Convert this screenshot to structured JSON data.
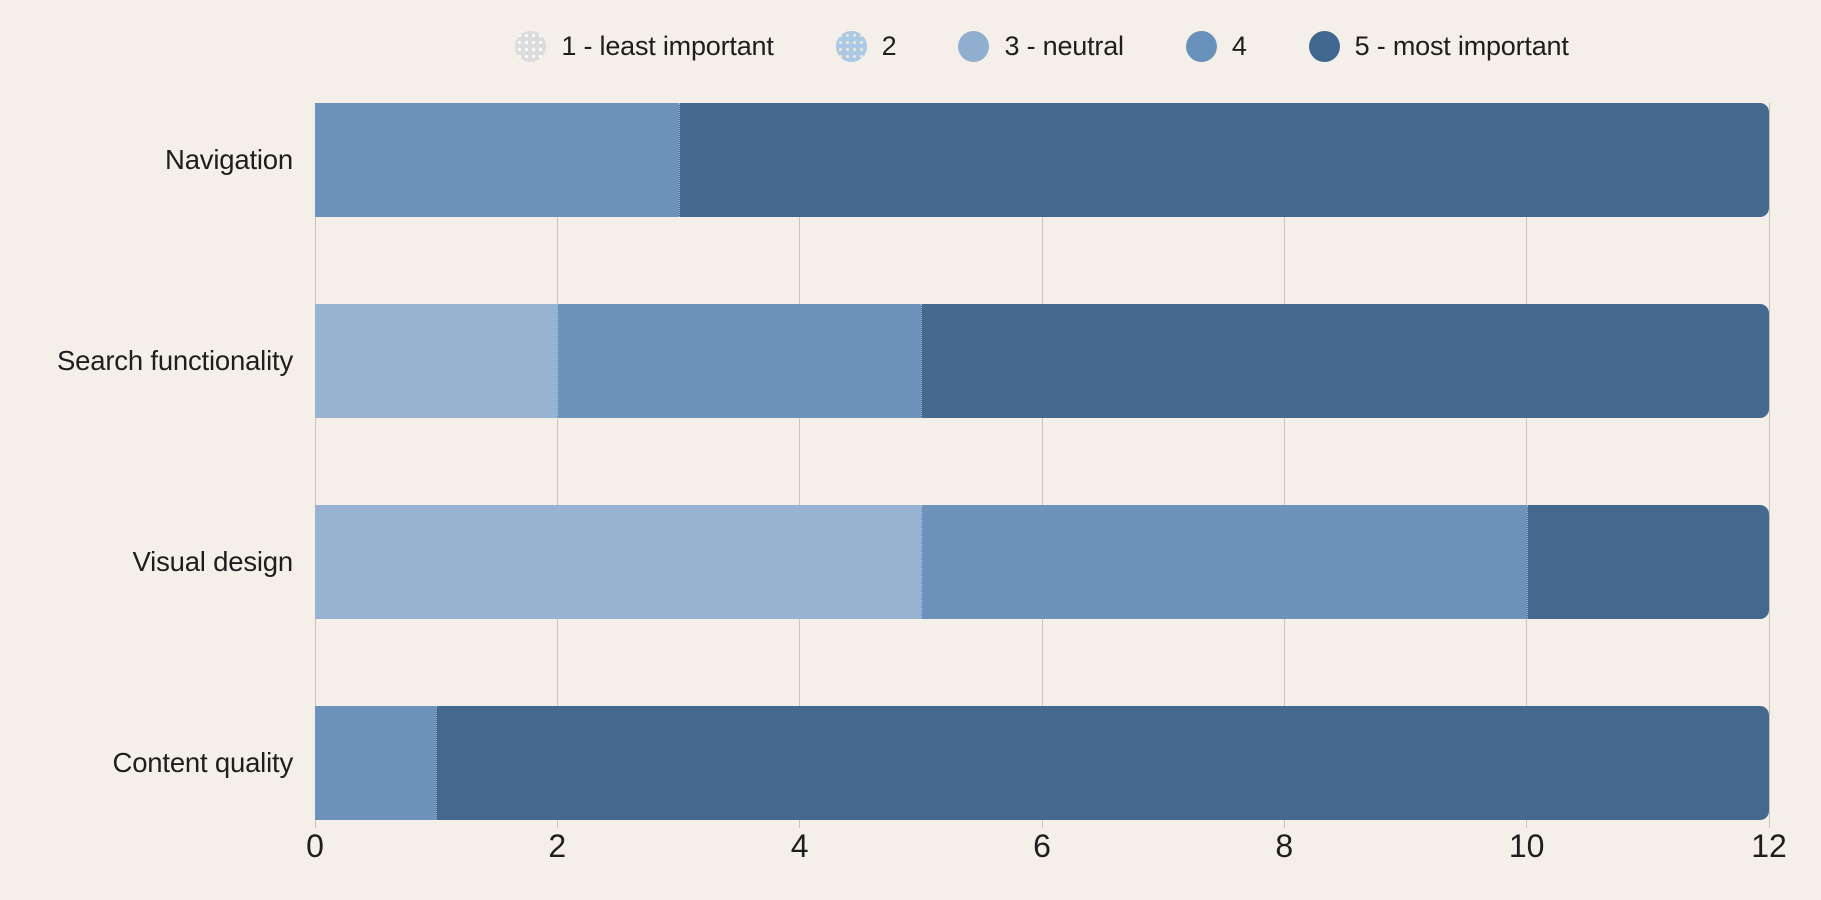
{
  "colors": {
    "background": "#f4efe8",
    "text": "#1e1e1e",
    "gridline": "#c9c3b9",
    "rating_1": "#dcdcdc",
    "rating_2": "#abc8e5",
    "rating_3": "#98b3d2",
    "rating_4": "#6d93bc",
    "rating_5": "#45688e"
  },
  "legend": {
    "items": [
      {
        "key": "1",
        "label": "1 - least important",
        "color": "#dcdcdc",
        "texture": "dot-white"
      },
      {
        "key": "2",
        "label": "2",
        "color": "#abc8e5",
        "texture": "dot-beige"
      },
      {
        "key": "3",
        "label": "3 - neutral",
        "color": "#90aecf",
        "texture": ""
      },
      {
        "key": "4",
        "label": "4",
        "color": "#6892bc",
        "texture": ""
      },
      {
        "key": "5",
        "label": "5 - most important",
        "color": "#406790",
        "texture": ""
      }
    ]
  },
  "chart_data": {
    "type": "bar",
    "orientation": "horizontal",
    "stacked": true,
    "title": "",
    "xlabel": "",
    "ylabel": "",
    "categories": [
      "Navigation",
      "Search functionality",
      "Visual design",
      "Content quality"
    ],
    "series": [
      {
        "name": "1 - least important",
        "color": "#dcdcdc",
        "values": [
          0,
          0,
          0,
          0
        ]
      },
      {
        "name": "2",
        "color": "#abc8e5",
        "values": [
          0,
          0,
          0,
          0
        ]
      },
      {
        "name": "3 - neutral",
        "color": "#98b3d2",
        "values": [
          0,
          2,
          5,
          0
        ]
      },
      {
        "name": "4",
        "color": "#6d93bc",
        "values": [
          3,
          3,
          5,
          1
        ]
      },
      {
        "name": "5 - most important",
        "color": "#45688e",
        "values": [
          9,
          7,
          2,
          11
        ]
      }
    ],
    "totals_per_category": [
      12,
      12,
      12,
      12
    ],
    "xlim": [
      0,
      12
    ],
    "xticks": [
      0,
      2,
      4,
      6,
      8,
      10,
      12
    ],
    "grid": true,
    "legend_position": "top"
  }
}
